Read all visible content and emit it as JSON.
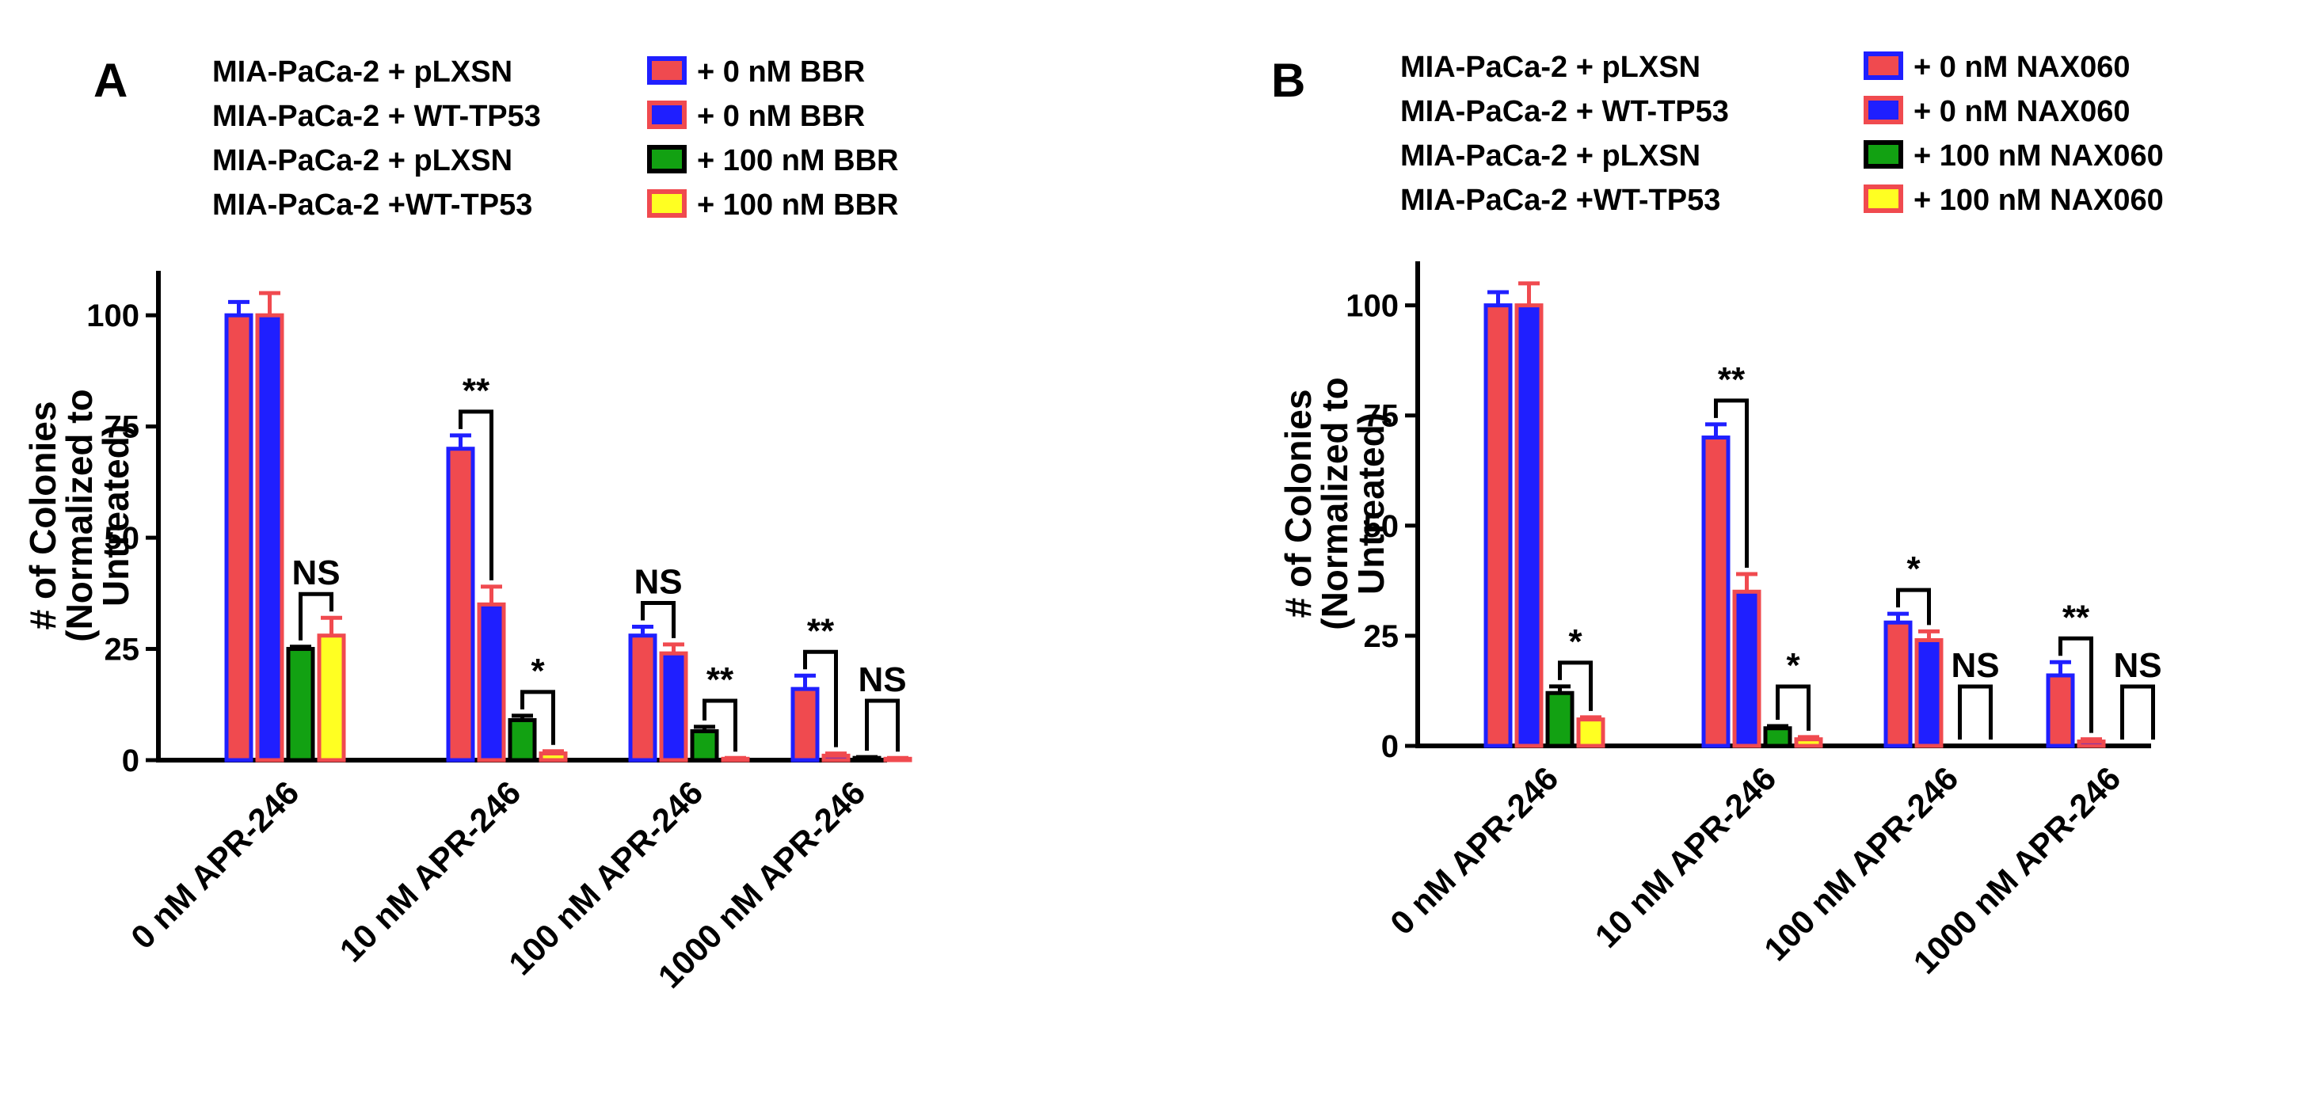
{
  "chart_data": [
    {
      "panel": "A",
      "type": "bar",
      "ylabel_line1": "# of Colonies",
      "ylabel_line2": "(Normalized to",
      "ylabel_line3": "Untreated)",
      "ylim": [
        0,
        110
      ],
      "yticks": [
        0,
        25,
        50,
        75,
        100
      ],
      "categories": [
        "0 nM APR-246",
        "10 nM APR-246",
        "100 nM APR-246",
        "1000 nM APR-246"
      ],
      "series": [
        {
          "cell": "MIA-PaCa-2 + pLXSN",
          "treatment": "+ 0 nM BBR",
          "fill": "#f04a4f",
          "edge": "#1f1fff",
          "values": [
            100,
            70,
            28,
            16
          ],
          "errors": [
            3,
            3,
            2,
            3
          ]
        },
        {
          "cell": "MIA-PaCa-2 + WT-TP53",
          "treatment": "+ 0 nM BBR",
          "fill": "#1f1fff",
          "edge": "#f04a4f",
          "values": [
            100,
            35,
            24,
            1
          ],
          "errors": [
            5,
            4,
            2,
            0.5
          ]
        },
        {
          "cell": "MIA-PaCa-2 + pLXSN",
          "treatment": "+ 100 nM BBR",
          "fill": "#12a112",
          "edge": "#000000",
          "values": [
            25,
            9,
            6.5,
            0.5
          ],
          "errors": [
            0.5,
            1,
            1,
            0.2
          ]
        },
        {
          "cell": "MIA-PaCa-2 +WT-TP53",
          "treatment": "+ 100 nM BBR",
          "fill": "#ffff22",
          "edge": "#f04a4f",
          "values": [
            28,
            1.5,
            0.3,
            0.3
          ],
          "errors": [
            4,
            0.5,
            0.2,
            0.2
          ]
        }
      ],
      "annotations": [
        {
          "category": 0,
          "from": 2,
          "to": 3,
          "label": "NS"
        },
        {
          "category": 1,
          "from": 0,
          "to": 1,
          "label": "**"
        },
        {
          "category": 1,
          "from": 2,
          "to": 3,
          "label": "*"
        },
        {
          "category": 2,
          "from": 0,
          "to": 1,
          "label": "NS"
        },
        {
          "category": 2,
          "from": 2,
          "to": 3,
          "label": "**"
        },
        {
          "category": 3,
          "from": 0,
          "to": 1,
          "label": "**"
        },
        {
          "category": 3,
          "from": 2,
          "to": 3,
          "label": "NS"
        }
      ]
    },
    {
      "panel": "B",
      "type": "bar",
      "ylabel_line1": "# of Colonies",
      "ylabel_line2": "(Normalized to",
      "ylabel_line3": "Untreated)",
      "ylim": [
        0,
        110
      ],
      "yticks": [
        0,
        25,
        50,
        75,
        100
      ],
      "categories": [
        "0 nM APR-246",
        "10 nM APR-246",
        "100 nM APR-246",
        "1000 nM APR-246"
      ],
      "series": [
        {
          "cell": "MIA-PaCa-2 + pLXSN",
          "treatment": "+ 0 nM NAX060",
          "fill": "#f04a4f",
          "edge": "#1f1fff",
          "values": [
            100,
            70,
            28,
            16
          ],
          "errors": [
            3,
            3,
            2,
            3
          ]
        },
        {
          "cell": "MIA-PaCa-2 + WT-TP53",
          "treatment": "+ 0 nM NAX060",
          "fill": "#1f1fff",
          "edge": "#f04a4f",
          "values": [
            100,
            35,
            24,
            1
          ],
          "errors": [
            5,
            4,
            2,
            0.5
          ]
        },
        {
          "cell": "MIA-PaCa-2 + pLXSN",
          "treatment": "+ 100 nM NAX060",
          "fill": "#12a112",
          "edge": "#000000",
          "values": [
            12,
            4,
            0,
            0
          ],
          "errors": [
            1.5,
            0.5,
            0,
            0
          ]
        },
        {
          "cell": "MIA-PaCa-2 +WT-TP53",
          "treatment": "+ 100 nM NAX060",
          "fill": "#ffff22",
          "edge": "#f04a4f",
          "values": [
            6,
            1.5,
            0,
            0
          ],
          "errors": [
            0.5,
            0.5,
            0,
            0
          ]
        }
      ],
      "annotations": [
        {
          "category": 0,
          "from": 2,
          "to": 3,
          "label": "*"
        },
        {
          "category": 1,
          "from": 0,
          "to": 1,
          "label": "**"
        },
        {
          "category": 1,
          "from": 2,
          "to": 3,
          "label": "*"
        },
        {
          "category": 2,
          "from": 0,
          "to": 1,
          "label": "*"
        },
        {
          "category": 2,
          "from": 2,
          "to": 3,
          "label": "NS"
        },
        {
          "category": 3,
          "from": 0,
          "to": 1,
          "label": "**"
        },
        {
          "category": 3,
          "from": 2,
          "to": 3,
          "label": "NS"
        }
      ]
    }
  ]
}
